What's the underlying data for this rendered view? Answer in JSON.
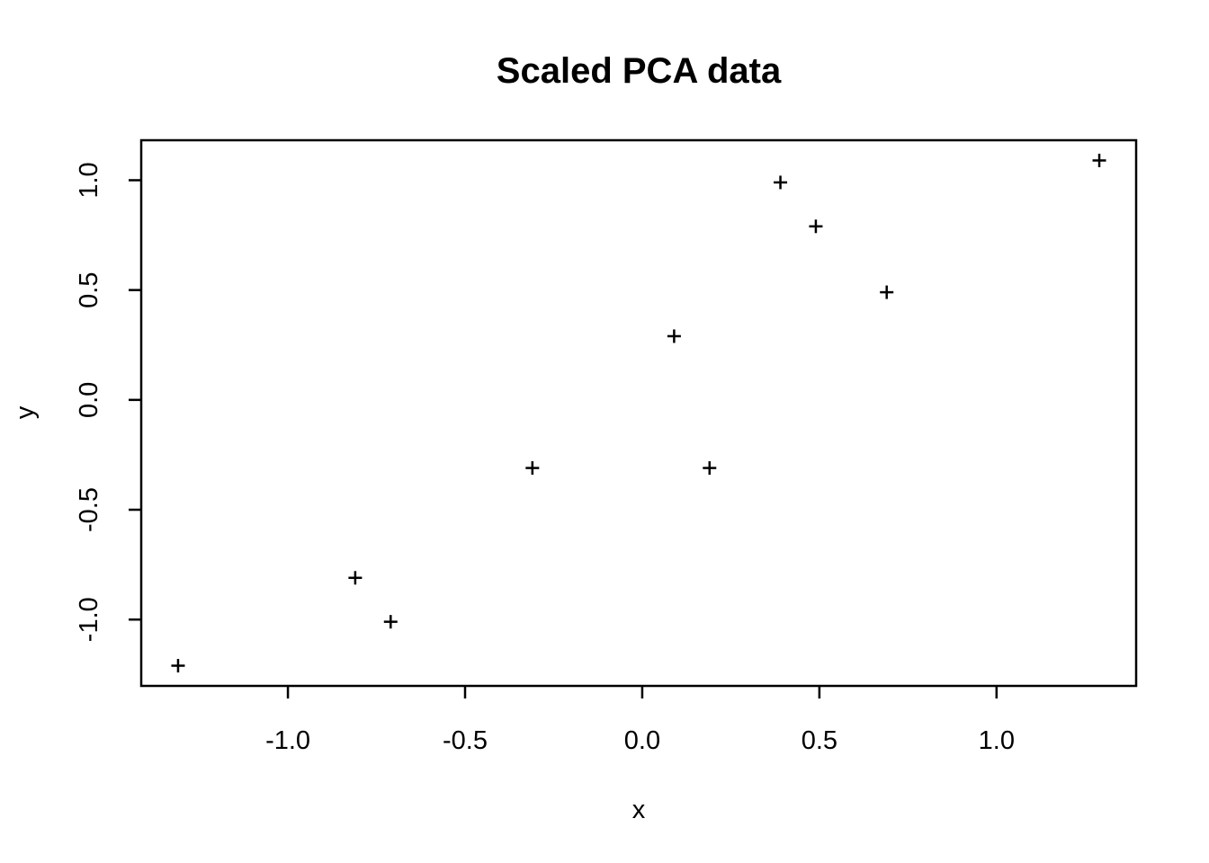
{
  "chart_data": {
    "type": "scatter",
    "title": "Scaled PCA data",
    "xlabel": "x",
    "ylabel": "y",
    "marker": "plus",
    "points": [
      {
        "x": 0.69,
        "y": 0.49
      },
      {
        "x": -1.31,
        "y": -1.21
      },
      {
        "x": 0.39,
        "y": 0.99
      },
      {
        "x": 0.09,
        "y": 0.29
      },
      {
        "x": 1.29,
        "y": 1.09
      },
      {
        "x": 0.49,
        "y": 0.79
      },
      {
        "x": 0.19,
        "y": -0.31
      },
      {
        "x": -0.81,
        "y": -0.81
      },
      {
        "x": -0.31,
        "y": -0.31
      },
      {
        "x": -0.71,
        "y": -1.01
      }
    ],
    "x_ticks": [
      -1.0,
      -0.5,
      0.0,
      0.5,
      1.0
    ],
    "x_tick_labels": [
      "-1.0",
      "-0.5",
      "0.0",
      "0.5",
      "1.0"
    ],
    "y_ticks": [
      -1.0,
      -0.5,
      0.0,
      0.5,
      1.0
    ],
    "y_tick_labels": [
      "-1.0",
      "-0.5",
      "0.0",
      "0.5",
      "1.0"
    ],
    "xlim": [
      -1.414,
      1.394
    ],
    "ylim": [
      -1.302,
      1.182
    ],
    "grid": false,
    "legend": null,
    "colors": {
      "foreground": "#000000",
      "background": "#FFFFFF"
    }
  }
}
